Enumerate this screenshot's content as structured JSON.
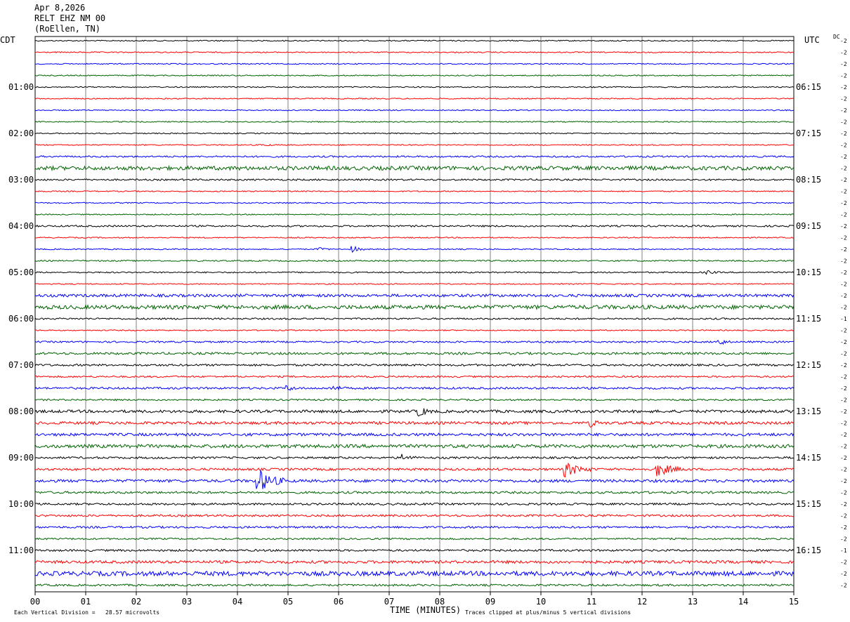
{
  "header": {
    "date": "Apr 8,2026",
    "station": "RELT EHZ NM 00",
    "location": "(RoEllen, TN)"
  },
  "labels": {
    "left_tz": "CDT",
    "right_tz": "UTC",
    "dc": "DC"
  },
  "footer": {
    "scale_note": "Each Vertical Division =   28.57 microvolts",
    "xlabel": "TIME (MINUTES)",
    "clip_note": "Traces clipped at plus/minus 5 vertical divisions"
  },
  "colors": {
    "trace_cycle": [
      "#000000",
      "#ff0000",
      "#0000ff",
      "#006400"
    ],
    "grid": "#808080",
    "frame": "#000000"
  },
  "chart_data": {
    "type": "line",
    "title": "RELT EHZ NM 00",
    "xlabel": "TIME (MINUTES)",
    "xlim": [
      0,
      15
    ],
    "x_ticks": [
      "00",
      "01",
      "02",
      "03",
      "04",
      "05",
      "06",
      "07",
      "08",
      "09",
      "10",
      "11",
      "12",
      "13",
      "14",
      "15"
    ],
    "grid": true,
    "left_time_labels": [
      {
        "row": 4,
        "text": "01:00"
      },
      {
        "row": 8,
        "text": "02:00"
      },
      {
        "row": 12,
        "text": "03:00"
      },
      {
        "row": 16,
        "text": "04:00"
      },
      {
        "row": 20,
        "text": "05:00"
      },
      {
        "row": 24,
        "text": "06:00"
      },
      {
        "row": 28,
        "text": "07:00"
      },
      {
        "row": 32,
        "text": "08:00"
      },
      {
        "row": 36,
        "text": "09:00"
      },
      {
        "row": 40,
        "text": "10:00"
      },
      {
        "row": 44,
        "text": "11:00"
      }
    ],
    "right_time_labels": [
      {
        "row": 4,
        "text": "06:15"
      },
      {
        "row": 8,
        "text": "07:15"
      },
      {
        "row": 12,
        "text": "08:15"
      },
      {
        "row": 16,
        "text": "09:15"
      },
      {
        "row": 20,
        "text": "10:15"
      },
      {
        "row": 24,
        "text": "11:15"
      },
      {
        "row": 28,
        "text": "12:15"
      },
      {
        "row": 32,
        "text": "13:15"
      },
      {
        "row": 36,
        "text": "14:15"
      },
      {
        "row": 40,
        "text": "15:15"
      },
      {
        "row": 44,
        "text": "16:15"
      }
    ],
    "dc_offsets": [
      "-2",
      "-2",
      "-2",
      "-2",
      "-2",
      "-2",
      "-2",
      "-2",
      "-2",
      "-2",
      "-2",
      "-2",
      "-2",
      "-2",
      "-2",
      "-2",
      "-2",
      "-2",
      "-2",
      "-2",
      "-2",
      "-2",
      "-2",
      "-2",
      "-1",
      "-2",
      "-2",
      "-2",
      "-2",
      "-2",
      "-2",
      "-2",
      "-2",
      "-2",
      "-2",
      "-2",
      "-2",
      "-2",
      "-2",
      "-2",
      "-2",
      "-2",
      "-2",
      "-2",
      "-1",
      "-2",
      "-2",
      "-2"
    ],
    "traces": {
      "count": 48,
      "noise_levels": [
        1,
        1,
        1,
        1,
        1,
        1,
        1,
        1,
        1,
        1,
        1.5,
        3.5,
        1.5,
        1,
        1,
        1,
        1.5,
        1,
        1,
        1.2,
        1.2,
        1,
        2.5,
        3.5,
        1.5,
        1,
        1.5,
        2,
        1.8,
        1.5,
        1.8,
        1.5,
        2.5,
        2.5,
        2.5,
        3,
        1.8,
        2,
        2.5,
        2,
        1.8,
        1.8,
        1.8,
        1.5,
        1.8,
        2.5,
        4,
        1.8
      ],
      "events": [
        {
          "row": 9,
          "minute": 4.5,
          "amplitude": 2
        },
        {
          "row": 18,
          "minute": 6.3,
          "amplitude": 5
        },
        {
          "row": 18,
          "minute": 5.6,
          "amplitude": 3
        },
        {
          "row": 20,
          "minute": 13.3,
          "amplitude": 3
        },
        {
          "row": 26,
          "minute": 13.5,
          "amplitude": 8
        },
        {
          "row": 30,
          "minute": 5.0,
          "amplitude": 4
        },
        {
          "row": 30,
          "minute": 5.9,
          "amplitude": 5
        },
        {
          "row": 32,
          "minute": 7.6,
          "amplitude": 9
        },
        {
          "row": 33,
          "minute": 11.0,
          "amplitude": 5
        },
        {
          "row": 36,
          "minute": 7.3,
          "amplitude": 6
        },
        {
          "row": 37,
          "minute": 10.5,
          "amplitude": 12
        },
        {
          "row": 37,
          "minute": 12.3,
          "amplitude": 12
        },
        {
          "row": 38,
          "minute": 4.4,
          "amplitude": 22
        }
      ]
    }
  }
}
